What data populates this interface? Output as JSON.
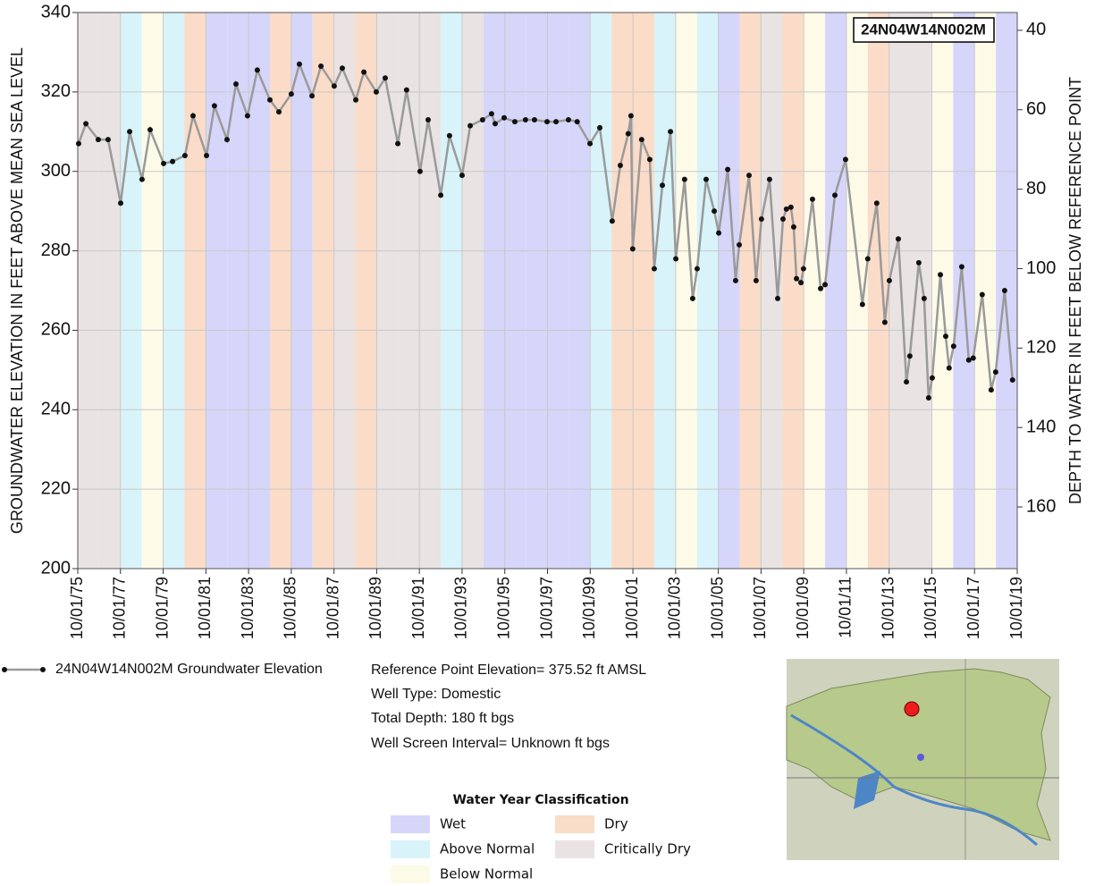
{
  "chart_data": {
    "type": "line",
    "title": "24N04W14N002M",
    "ylabel": "GROUNDWATER ELEVATION IN FEET ABOVE MEAN SEA LEVEL",
    "y2label": "DEPTH TO WATER IN FEET BELOW REFERENCE POINT",
    "xlim": [
      1975.75,
      2019.75
    ],
    "xticks": [
      {
        "value": 1975.75,
        "label": "10/01/75"
      },
      {
        "value": 1977.75,
        "label": "10/01/77"
      },
      {
        "value": 1979.75,
        "label": "10/01/79"
      },
      {
        "value": 1981.75,
        "label": "10/01/81"
      },
      {
        "value": 1983.75,
        "label": "10/01/83"
      },
      {
        "value": 1985.75,
        "label": "10/01/85"
      },
      {
        "value": 1987.75,
        "label": "10/01/87"
      },
      {
        "value": 1989.75,
        "label": "10/01/89"
      },
      {
        "value": 1991.75,
        "label": "10/01/91"
      },
      {
        "value": 1993.75,
        "label": "10/01/93"
      },
      {
        "value": 1995.75,
        "label": "10/01/95"
      },
      {
        "value": 1997.75,
        "label": "10/01/97"
      },
      {
        "value": 1999.75,
        "label": "10/01/99"
      },
      {
        "value": 2001.75,
        "label": "10/01/01"
      },
      {
        "value": 2003.75,
        "label": "10/01/03"
      },
      {
        "value": 2005.75,
        "label": "10/01/05"
      },
      {
        "value": 2007.75,
        "label": "10/01/07"
      },
      {
        "value": 2009.75,
        "label": "10/01/09"
      },
      {
        "value": 2011.75,
        "label": "10/01/11"
      },
      {
        "value": 2013.75,
        "label": "10/01/13"
      },
      {
        "value": 2015.75,
        "label": "10/01/15"
      },
      {
        "value": 2017.75,
        "label": "10/01/17"
      },
      {
        "value": 2019.75,
        "label": "10/01/19"
      }
    ],
    "ylim": [
      200,
      340
    ],
    "yticks": [
      200,
      220,
      240,
      260,
      280,
      300,
      320,
      340
    ],
    "y2lim": [
      175.52,
      35.52
    ],
    "y2ticks": [
      40,
      60,
      80,
      100,
      120,
      140,
      160
    ],
    "grid": true,
    "series": [
      {
        "name": "24N04W14N002M Groundwater Elevation",
        "color": "#9a9a9a",
        "x": [
          1975.79,
          1976.13,
          1976.71,
          1977.17,
          1977.76,
          1978.18,
          1978.76,
          1979.14,
          1979.77,
          1980.19,
          1980.77,
          1981.15,
          1981.78,
          1982.15,
          1982.74,
          1983.16,
          1983.7,
          1984.16,
          1984.75,
          1985.17,
          1985.75,
          1986.13,
          1986.72,
          1987.14,
          1987.76,
          1988.14,
          1988.77,
          1989.15,
          1989.73,
          1990.15,
          1990.74,
          1991.15,
          1991.78,
          1992.16,
          1992.75,
          1993.16,
          1993.75,
          1994.13,
          1994.71,
          1995.13,
          1995.3,
          1995.72,
          1996.22,
          1996.72,
          1997.14,
          1997.73,
          1998.15,
          1998.73,
          1999.14,
          1999.74,
          2000.2,
          2000.78,
          2001.16,
          2001.53,
          2001.66,
          2001.74,
          2002.16,
          2002.54,
          2002.75,
          2003.13,
          2003.51,
          2003.76,
          2004.17,
          2004.55,
          2004.76,
          2005.18,
          2005.56,
          2005.77,
          2006.19,
          2006.56,
          2006.73,
          2007.19,
          2007.52,
          2007.77,
          2008.15,
          2008.53,
          2008.78,
          2008.94,
          2009.15,
          2009.28,
          2009.41,
          2009.62,
          2009.74,
          2010.16,
          2010.54,
          2010.75,
          2011.21,
          2011.71,
          2012.5,
          2012.75,
          2013.17,
          2013.55,
          2013.76,
          2014.18,
          2014.56,
          2014.72,
          2015.14,
          2015.39,
          2015.6,
          2015.77,
          2016.15,
          2016.4,
          2016.56,
          2016.77,
          2017.15,
          2017.48,
          2017.69,
          2018.11,
          2018.53,
          2018.74,
          2019.16,
          2019.53
        ],
        "values": [
          307,
          312,
          308,
          308,
          292,
          310,
          298,
          310.5,
          302,
          302.5,
          304,
          314,
          304,
          316.5,
          308,
          322,
          314,
          325.5,
          318,
          315,
          319.5,
          327,
          319,
          326.5,
          321.5,
          326,
          318,
          325,
          320,
          323.5,
          307,
          320.5,
          300,
          313,
          294,
          309,
          299,
          311.5,
          313,
          314.5,
          312,
          313.5,
          312.5,
          313,
          313,
          312.5,
          312.5,
          313,
          312.5,
          307,
          311,
          287.5,
          301.5,
          309.5,
          314,
          280.5,
          308,
          303,
          275.5,
          296.5,
          310,
          278,
          298,
          268,
          275.5,
          298,
          290,
          284.5,
          300.5,
          272.5,
          281.5,
          299,
          272.5,
          288,
          298,
          268,
          288,
          290.5,
          291,
          286,
          273,
          272,
          275.5,
          293,
          270.5,
          271.5,
          294,
          303,
          266.5,
          278,
          292,
          262,
          272.5,
          283,
          247,
          253.5,
          277,
          268,
          243,
          248,
          274,
          258.5,
          250.5,
          256,
          276,
          252.5,
          253,
          269,
          245,
          249.5,
          270,
          247.5
        ]
      }
    ],
    "annotations": [
      "Reference Point Elevation= 375.52 ft AMSL",
      "Well Type: Domestic",
      "Total Depth: 180 ft bgs",
      "Well Screen Interval= Unknown ft bgs"
    ],
    "water_year_classification": {
      "title": "Water Year Classification",
      "classes": [
        {
          "name": "Wet",
          "color": "#d6d6fb"
        },
        {
          "name": "Dry",
          "color": "#fbdcc8"
        },
        {
          "name": "Above Normal",
          "color": "#d8f4fa"
        },
        {
          "name": "Critically Dry",
          "color": "#e9e3e3"
        },
        {
          "name": "Below Normal",
          "color": "#fdfbe8"
        }
      ],
      "bands": [
        "Critically Dry",
        "Critically Dry",
        "Above Normal",
        "Below Normal",
        "Above Normal",
        "Dry",
        "Wet",
        "Wet",
        "Wet",
        "Dry",
        "Wet",
        "Dry",
        "Critically Dry",
        "Dry",
        "Critically Dry",
        "Critically Dry",
        "Critically Dry",
        "Above Normal",
        "Critically Dry",
        "Wet",
        "Wet",
        "Wet",
        "Wet",
        "Wet",
        "Above Normal",
        "Dry",
        "Dry",
        "Above Normal",
        "Below Normal",
        "Above Normal",
        "Wet",
        "Dry",
        "Critically Dry",
        "Dry",
        "Below Normal",
        "Wet",
        "Below Normal",
        "Dry",
        "Critically Dry",
        "Critically Dry",
        "Below Normal",
        "Wet",
        "Below Normal",
        "Wet"
      ]
    }
  }
}
